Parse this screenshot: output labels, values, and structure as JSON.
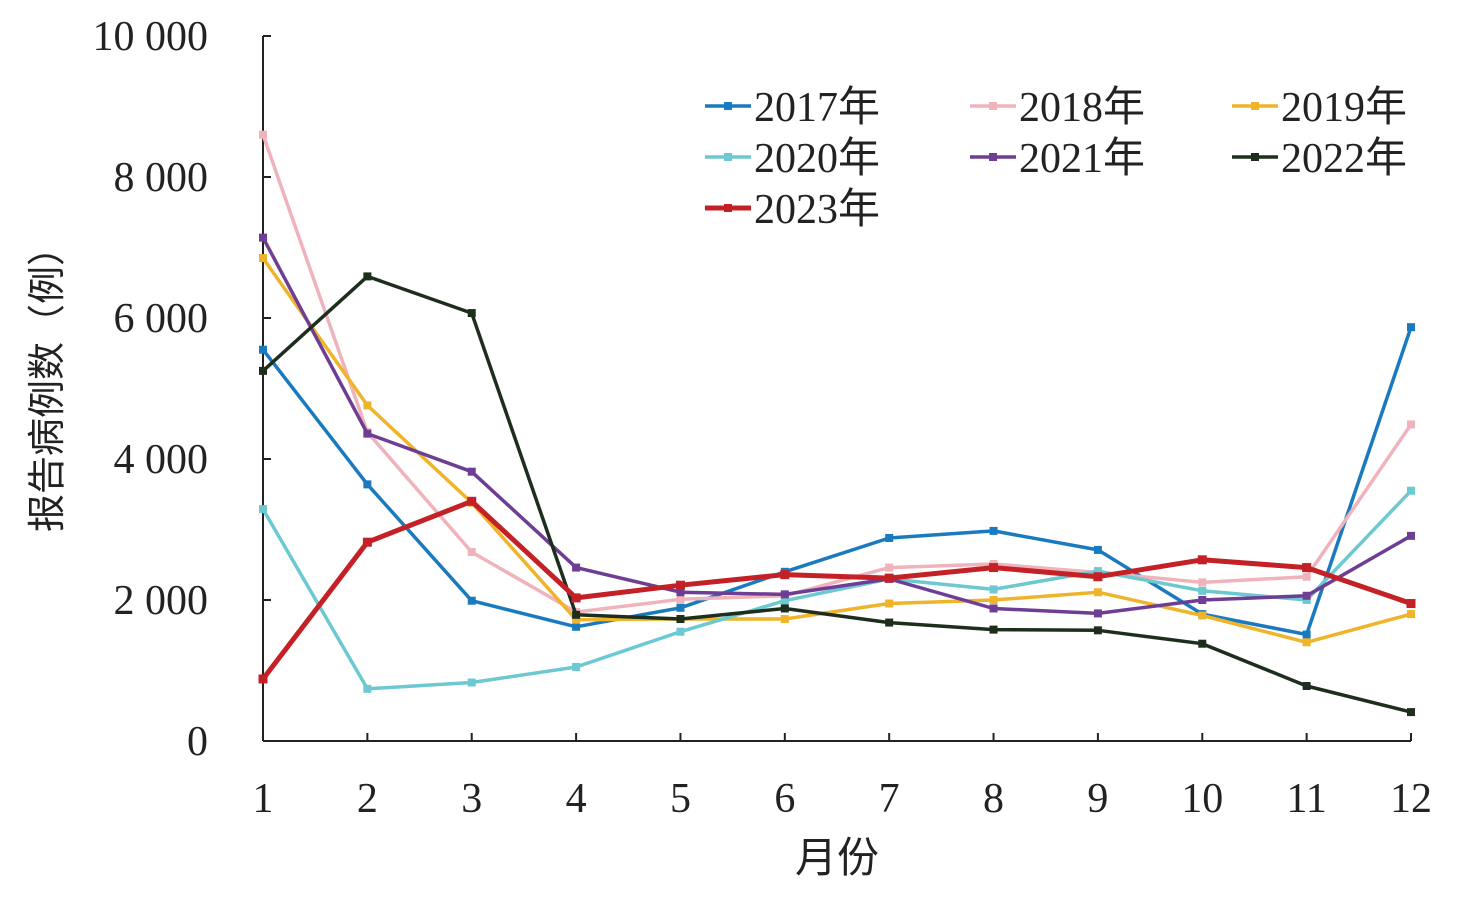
{
  "chart_data": {
    "type": "line",
    "title": "",
    "xlabel": "月份",
    "ylabel": "报告病例数（例）",
    "x": [
      "1",
      "2",
      "3",
      "4",
      "5",
      "6",
      "7",
      "8",
      "9",
      "10",
      "11",
      "12"
    ],
    "ylim": [
      0,
      10000
    ],
    "yticks": [
      0,
      2000,
      4000,
      6000,
      8000,
      10000
    ],
    "ytick_labels": [
      "0",
      "2 000",
      "4 000",
      "6 000",
      "8 000",
      "10 000"
    ],
    "grid": false,
    "legend_position": "top-right",
    "series": [
      {
        "name": "2017年",
        "color": "#1a7abf",
        "values": [
          5550,
          3640,
          1990,
          1620,
          1890,
          2400,
          2880,
          2980,
          2710,
          1800,
          1510,
          5870
        ]
      },
      {
        "name": "2018年",
        "color": "#f0b3bb",
        "values": [
          8600,
          4380,
          2680,
          1830,
          2010,
          2060,
          2460,
          2510,
          2390,
          2250,
          2330,
          4490
        ]
      },
      {
        "name": "2019年",
        "color": "#efb42a",
        "values": [
          6850,
          4760,
          3380,
          1720,
          1730,
          1730,
          1950,
          2000,
          2110,
          1780,
          1400,
          1800
        ]
      },
      {
        "name": "2020年",
        "color": "#6cc8d1",
        "values": [
          3290,
          740,
          830,
          1050,
          1550,
          1990,
          2300,
          2150,
          2410,
          2130,
          2000,
          3550
        ]
      },
      {
        "name": "2021年",
        "color": "#6e3d94",
        "values": [
          7140,
          4360,
          3820,
          2460,
          2110,
          2080,
          2300,
          1880,
          1810,
          2000,
          2060,
          2910
        ]
      },
      {
        "name": "2022年",
        "color": "#1d2f1c",
        "values": [
          5250,
          6590,
          6070,
          1790,
          1730,
          1880,
          1680,
          1580,
          1570,
          1380,
          780,
          410
        ]
      },
      {
        "name": "2023年",
        "color": "#c42127",
        "values": [
          880,
          2820,
          3400,
          2030,
          2210,
          2360,
          2310,
          2460,
          2330,
          2570,
          2460,
          1950
        ]
      }
    ]
  }
}
